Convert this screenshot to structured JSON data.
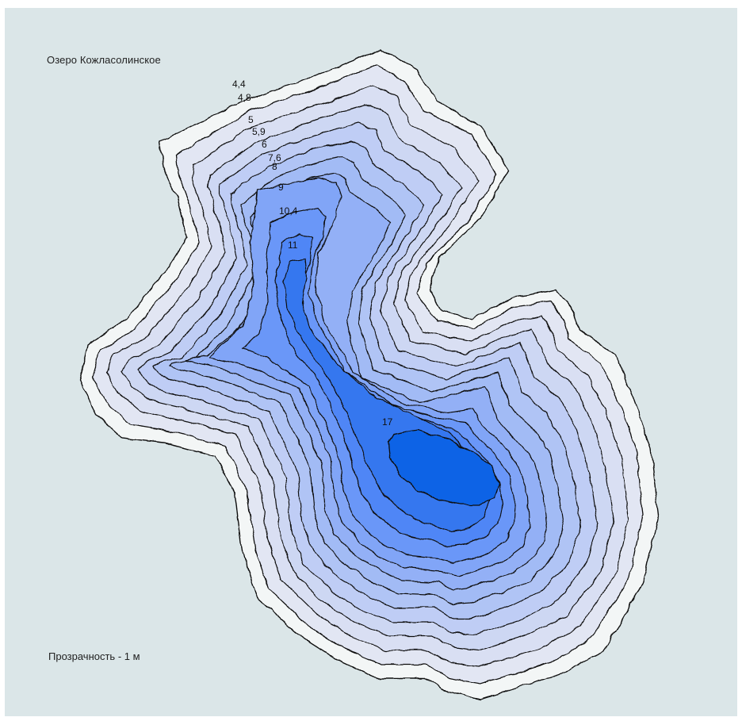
{
  "map": {
    "title": "Озеро Кожласолинское",
    "transparency": "Прозрачность - 1 м"
  },
  "contours": {
    "depth_labels": [
      "4,4",
      "4,8",
      "5",
      "5,9",
      "6",
      "7,6",
      "8",
      "9",
      "10,4",
      "11",
      "17"
    ]
  },
  "colors": {
    "background": "#dbe6e8",
    "shore": "#f3f6f6",
    "deepest": "#0b63e6"
  }
}
